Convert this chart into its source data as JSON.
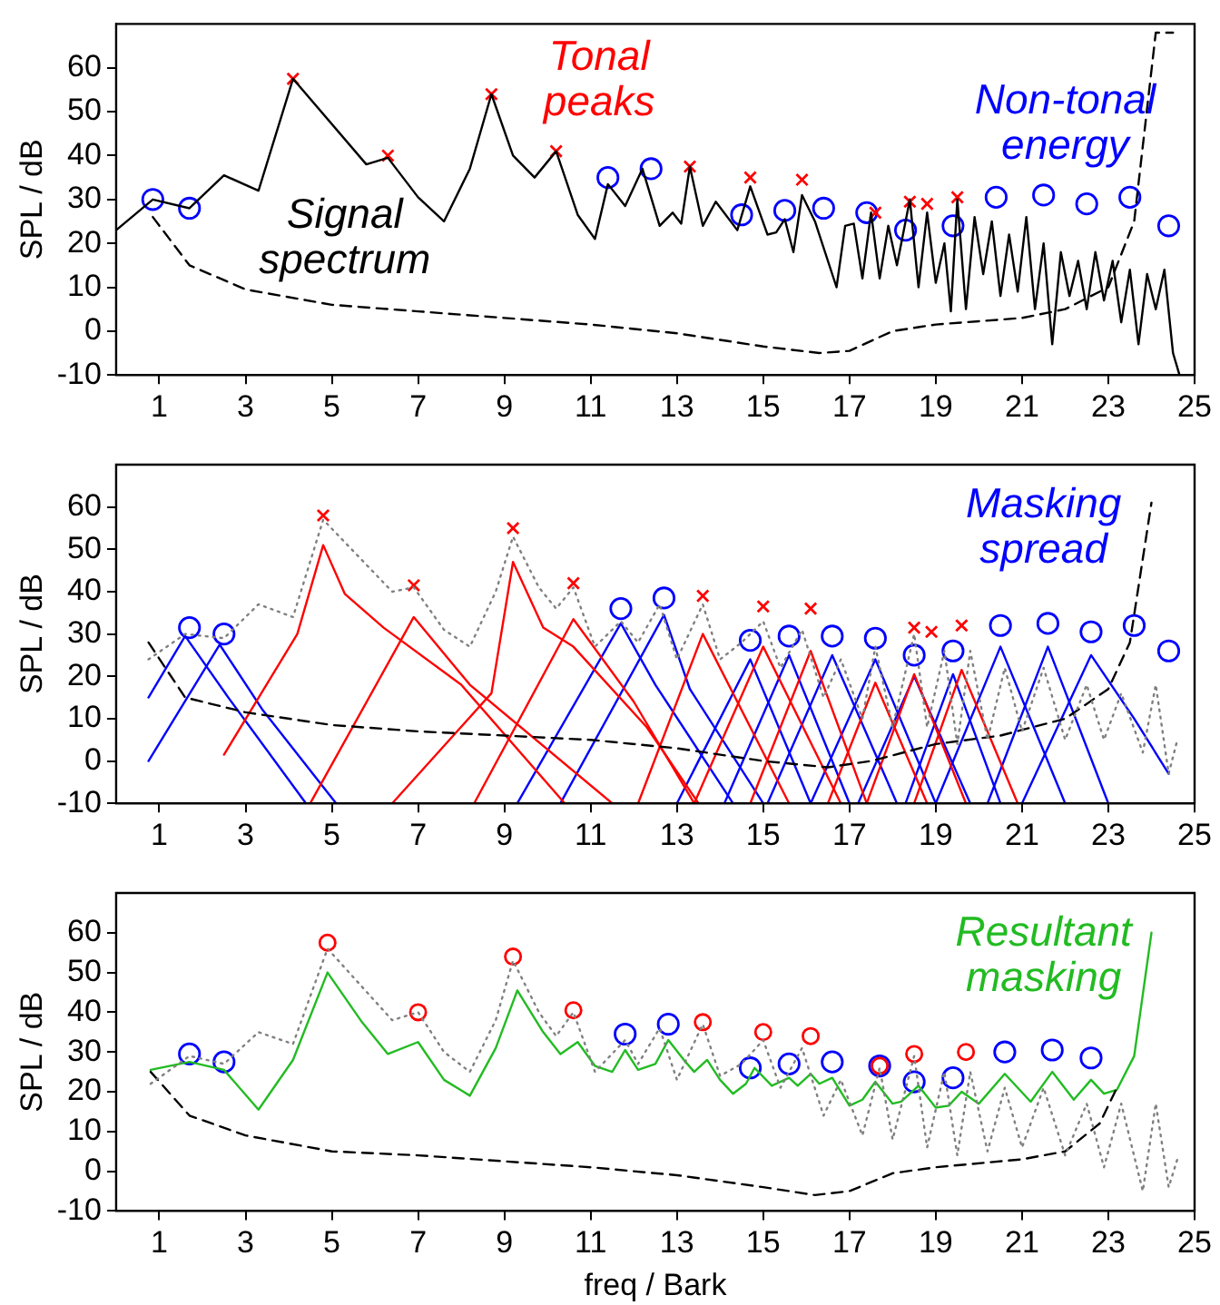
{
  "chart_data": [
    {
      "type": "line",
      "ylabel": "SPL / dB",
      "xlim": [
        0,
        25
      ],
      "ylim": [
        -10,
        70
      ],
      "xticks": [
        1,
        3,
        5,
        7,
        9,
        11,
        13,
        15,
        17,
        19,
        21,
        23,
        25
      ],
      "yticks": [
        -10,
        0,
        10,
        20,
        30,
        40,
        50,
        60
      ],
      "grid": false,
      "series": [
        {
          "type": "line",
          "name": "Signal spectrum",
          "color": "#000000",
          "line_style": "solid",
          "x": [
            0,
            0.85,
            1.7,
            2.5,
            3.3,
            4.1,
            5.8,
            6.3,
            7,
            7.6,
            8.2,
            8.7,
            9.2,
            9.7,
            10.2,
            10.7,
            11.1,
            11.4,
            11.8,
            12.2,
            12.6,
            12.9,
            13.1,
            13.3,
            13.6,
            13.9,
            14.4,
            14.7,
            15.1,
            15.3,
            15.5,
            15.7,
            15.9,
            16.2,
            16.7,
            16.9,
            17.1,
            17.3,
            17.5,
            17.7,
            17.9,
            18.1,
            18.4,
            18.6,
            18.8,
            19,
            19.2,
            19.35,
            19.5,
            19.7,
            19.9,
            20.1,
            20.3,
            20.5,
            20.7,
            20.9,
            21.1,
            21.3,
            21.5,
            21.7,
            21.9,
            22.1,
            22.3,
            22.5,
            22.7,
            22.9,
            23.1,
            23.3,
            23.5,
            23.7,
            23.9,
            24.1,
            24.3,
            24.5,
            24.65
          ],
          "values": [
            23,
            30,
            28,
            35.5,
            32,
            57.5,
            38,
            39.5,
            30.5,
            25,
            37,
            54,
            40,
            35,
            41,
            26.5,
            21,
            33.5,
            28.5,
            37,
            24,
            27,
            24.5,
            37.5,
            24,
            29.5,
            23,
            33,
            22,
            22.5,
            25.5,
            18,
            31,
            25,
            10,
            24,
            24.5,
            12,
            27,
            12,
            24,
            15,
            30,
            10,
            27,
            11,
            20,
            4.5,
            30,
            5,
            26,
            13,
            25,
            8,
            22,
            9,
            26,
            5,
            20,
            -3,
            18,
            8,
            16,
            5,
            18,
            7,
            16,
            2,
            14,
            -3,
            13,
            5,
            14,
            -5,
            -10
          ]
        },
        {
          "type": "line",
          "color": "#000000",
          "line_style": "dashed",
          "x": [
            0.85,
            1.7,
            3,
            5,
            7,
            9,
            11,
            13,
            15,
            16.3,
            17,
            18,
            19,
            21,
            22,
            23,
            23.6,
            24.1,
            24.5
          ],
          "values": [
            26,
            15,
            9.5,
            6,
            4.5,
            3,
            1.5,
            -0.5,
            -3.5,
            -5,
            -4.5,
            0,
            1.5,
            3,
            5,
            10,
            25,
            68,
            68
          ]
        },
        {
          "type": "scatter",
          "name": "Tonal peaks",
          "color": "#ff0000",
          "marker": "cross",
          "x": [
            4.1,
            6.3,
            8.7,
            10.2,
            13.3,
            14.7,
            15.9,
            17.6,
            18.4,
            18.8,
            19.5
          ],
          "values": [
            57.5,
            40,
            54,
            41,
            37.5,
            35,
            34.5,
            27,
            29.5,
            29,
            30.5
          ]
        },
        {
          "type": "scatter",
          "name": "Non-tonal energy",
          "color": "#0000ff",
          "marker": "circle",
          "x": [
            0.85,
            1.7,
            11.4,
            12.4,
            14.5,
            15.5,
            16.4,
            17.4,
            18.3,
            19.4,
            20.4,
            21.5,
            22.5,
            23.5,
            24.4
          ],
          "values": [
            30,
            28,
            35,
            37,
            26.5,
            27.5,
            28,
            27,
            23,
            24,
            30.5,
            31,
            29,
            30.5,
            24
          ]
        }
      ]
    },
    {
      "type": "line",
      "ylabel": "SPL / dB",
      "xlim": [
        0,
        25
      ],
      "ylim": [
        -10,
        70
      ],
      "xticks": [
        1,
        3,
        5,
        7,
        9,
        11,
        13,
        15,
        17,
        19,
        21,
        23,
        25
      ],
      "yticks": [
        -10,
        0,
        10,
        20,
        30,
        40,
        50,
        60
      ],
      "grid": false,
      "series": [
        {
          "type": "line",
          "color": "#808080",
          "line_style": "dotted",
          "x": [
            0.75,
            1.6,
            2.5,
            3.3,
            4.1,
            4.8,
            6.4,
            6.9,
            7.6,
            8.2,
            8.8,
            9.2,
            9.8,
            10.2,
            10.6,
            11.1,
            11.7,
            12.1,
            12.6,
            13,
            13.6,
            14,
            14.5,
            15,
            15.4,
            15.9,
            16.4,
            16.8,
            17.3,
            17.6,
            18,
            18.5,
            18.8,
            19.2,
            19.5,
            19.8,
            20.2,
            20.6,
            21,
            21.5,
            22,
            22.5,
            22.9,
            23.3,
            23.8,
            24.1,
            24.4,
            24.6
          ],
          "values": [
            24,
            30,
            29,
            37,
            34,
            57,
            40,
            41,
            31,
            27,
            40,
            53,
            41,
            36,
            41,
            27,
            33,
            28,
            37,
            24,
            37,
            24,
            28,
            33,
            22,
            31,
            15,
            24,
            10,
            27,
            8,
            30,
            8,
            26,
            4,
            26,
            5,
            22,
            7,
            22,
            5,
            18,
            5,
            16,
            2,
            18,
            -3,
            5
          ]
        },
        {
          "type": "line",
          "color": "#000000",
          "line_style": "dashed",
          "x": [
            0.75,
            1.6,
            3,
            5,
            7,
            9,
            11,
            13,
            15,
            16.5,
            17.5,
            19,
            20.5,
            22,
            23,
            23.5,
            24
          ],
          "values": [
            28,
            15,
            11.5,
            8.5,
            7,
            6,
            5,
            3,
            0,
            -1.5,
            0,
            4,
            6,
            10,
            17,
            28,
            61
          ]
        },
        {
          "type": "line",
          "color": "#ff0000",
          "line_style": "solid",
          "x": [
            2.5,
            4.2,
            4.8,
            5.3,
            6.2,
            8,
            10.4
          ],
          "values": [
            1.5,
            30,
            51,
            39.5,
            31.5,
            18,
            -10
          ]
        },
        {
          "type": "line",
          "color": "#ff0000",
          "line_style": "solid",
          "x": [
            4.5,
            6.9,
            8.2,
            11.5
          ],
          "values": [
            -10,
            34,
            18,
            -10
          ]
        },
        {
          "type": "line",
          "color": "#ff0000",
          "line_style": "solid",
          "x": [
            6.4,
            8.7,
            9.2,
            9.9,
            10.6,
            12.3,
            13.5
          ],
          "values": [
            -10,
            16,
            47,
            31.5,
            27,
            8,
            -10
          ]
        },
        {
          "type": "line",
          "color": "#ff0000",
          "line_style": "solid",
          "x": [
            8.3,
            10.6,
            12,
            13.4
          ],
          "values": [
            -10,
            33.5,
            14,
            -10
          ]
        },
        {
          "type": "line",
          "color": "#ff0000",
          "line_style": "solid",
          "x": [
            12.1,
            13.6,
            15.6
          ],
          "values": [
            -10,
            30,
            -10
          ]
        },
        {
          "type": "line",
          "color": "#ff0000",
          "line_style": "solid",
          "x": [
            13.4,
            15,
            16.8
          ],
          "values": [
            -10,
            27,
            -10
          ]
        },
        {
          "type": "line",
          "color": "#ff0000",
          "line_style": "solid",
          "x": [
            14.7,
            16.1,
            17.4
          ],
          "values": [
            -10,
            26,
            -10
          ]
        },
        {
          "type": "line",
          "color": "#ff0000",
          "line_style": "solid",
          "x": [
            16.5,
            17.6,
            18.8
          ],
          "values": [
            -10,
            18.5,
            -10
          ]
        },
        {
          "type": "line",
          "color": "#ff0000",
          "line_style": "solid",
          "x": [
            17.4,
            18.5,
            19.7
          ],
          "values": [
            -10,
            20.5,
            -10
          ]
        },
        {
          "type": "line",
          "color": "#ff0000",
          "line_style": "solid",
          "x": [
            18.5,
            19.6,
            20.9
          ],
          "values": [
            -10,
            21.5,
            -10
          ]
        },
        {
          "type": "line",
          "color": "#0000ff",
          "line_style": "solid",
          "x": [
            0.75,
            1.6,
            2.6,
            4.4
          ],
          "values": [
            15,
            29.5,
            15,
            -10
          ]
        },
        {
          "type": "line",
          "color": "#0000ff",
          "line_style": "solid",
          "x": [
            0.75,
            2.4,
            3.4,
            5.1
          ],
          "values": [
            0,
            27.5,
            12,
            -10
          ]
        },
        {
          "type": "line",
          "color": "#0000ff",
          "line_style": "solid",
          "x": [
            9.3,
            11.7,
            12.5,
            14.3
          ],
          "values": [
            -10,
            32.5,
            18,
            -10
          ]
        },
        {
          "type": "line",
          "color": "#0000ff",
          "line_style": "solid",
          "x": [
            10.3,
            12.7,
            13.3,
            15
          ],
          "values": [
            -10,
            34.5,
            17,
            -10
          ]
        },
        {
          "type": "line",
          "color": "#0000ff",
          "line_style": "solid",
          "x": [
            13,
            14.7,
            16.1
          ],
          "values": [
            -10,
            24,
            -10
          ]
        },
        {
          "type": "line",
          "color": "#0000ff",
          "line_style": "solid",
          "x": [
            14.1,
            15.6,
            17
          ],
          "values": [
            -10,
            25,
            -10
          ]
        },
        {
          "type": "line",
          "color": "#0000ff",
          "line_style": "solid",
          "x": [
            15.1,
            16.6,
            18.1
          ],
          "values": [
            -10,
            25,
            -10
          ]
        },
        {
          "type": "line",
          "color": "#0000ff",
          "line_style": "solid",
          "x": [
            16.1,
            17.6,
            19
          ],
          "values": [
            -10,
            24,
            -10
          ]
        },
        {
          "type": "line",
          "color": "#0000ff",
          "line_style": "solid",
          "x": [
            17.2,
            18.5,
            19.8
          ],
          "values": [
            -10,
            20,
            -10
          ]
        },
        {
          "type": "line",
          "color": "#0000ff",
          "line_style": "solid",
          "x": [
            18.3,
            19.4,
            20.5
          ],
          "values": [
            -10,
            20.5,
            -10
          ]
        },
        {
          "type": "line",
          "color": "#0000ff",
          "line_style": "solid",
          "x": [
            19,
            20.5,
            22
          ],
          "values": [
            -10,
            27,
            -10
          ]
        },
        {
          "type": "line",
          "color": "#0000ff",
          "line_style": "solid",
          "x": [
            20.2,
            21.6,
            23
          ],
          "values": [
            -10,
            27,
            -10
          ]
        },
        {
          "type": "line",
          "name": "Masking spread",
          "color": "#0000ff",
          "line_style": "solid",
          "x": [
            21,
            22.6,
            23.6,
            24.4
          ],
          "values": [
            -10,
            25,
            10,
            -3
          ]
        },
        {
          "type": "scatter",
          "color": "#ff0000",
          "marker": "cross",
          "x": [
            4.8,
            6.9,
            9.2,
            10.6,
            13.6,
            15,
            16.1,
            18.5,
            18.9,
            19.6
          ],
          "values": [
            58,
            41.5,
            55,
            42,
            39,
            36.5,
            36,
            31.5,
            30.5,
            32
          ]
        },
        {
          "type": "scatter",
          "color": "#0000ff",
          "marker": "circle",
          "x": [
            1.7,
            2.5,
            11.7,
            12.7,
            14.7,
            15.6,
            16.6,
            17.6,
            18.5,
            19.4,
            20.5,
            21.6,
            22.6,
            23.6,
            24.4
          ],
          "values": [
            31.5,
            30,
            36,
            38.5,
            28.5,
            29.5,
            29.5,
            29,
            25,
            26,
            32,
            32.5,
            30.5,
            32,
            26
          ]
        }
      ]
    },
    {
      "type": "line",
      "xlabel": "freq / Bark",
      "ylabel": "SPL / dB",
      "xlim": [
        0,
        25
      ],
      "ylim": [
        -10,
        70
      ],
      "xticks": [
        1,
        3,
        5,
        7,
        9,
        11,
        13,
        15,
        17,
        19,
        21,
        23,
        25
      ],
      "yticks": [
        -10,
        0,
        10,
        20,
        30,
        40,
        50,
        60
      ],
      "grid": false,
      "series": [
        {
          "type": "line",
          "color": "#808080",
          "line_style": "dotted",
          "x": [
            0.8,
            1.7,
            2.5,
            3.3,
            4.1,
            4.9,
            6.4,
            7,
            7.6,
            8.2,
            8.8,
            9.2,
            9.8,
            10.2,
            10.6,
            11.1,
            11.8,
            12.1,
            12.6,
            13,
            13.6,
            14,
            14.5,
            15,
            15.4,
            15.9,
            16.4,
            16.8,
            17.3,
            17.7,
            18,
            18.5,
            18.8,
            19.2,
            19.5,
            19.8,
            20.2,
            20.6,
            21,
            21.5,
            22,
            22.5,
            22.9,
            23.3,
            23.8,
            24.1,
            24.4,
            24.6
          ],
          "values": [
            22,
            29,
            27,
            35,
            32,
            56,
            38,
            40,
            30,
            25,
            38,
            53,
            40,
            34,
            40,
            25,
            33,
            27,
            36,
            23,
            37,
            24,
            27,
            33,
            21,
            31,
            14,
            23,
            9,
            26,
            8,
            29,
            6,
            25,
            4,
            25,
            5,
            21,
            6,
            21,
            4,
            17,
            1,
            17,
            -5,
            17,
            -4,
            3
          ]
        },
        {
          "type": "line",
          "color": "#000000",
          "line_style": "dashed",
          "x": [
            0.8,
            1.7,
            3,
            5,
            7,
            9,
            11,
            13,
            15,
            16.2,
            17,
            18,
            19,
            21,
            22,
            22.8,
            23.2
          ],
          "values": [
            25,
            14,
            9,
            5,
            4,
            2.5,
            1,
            -1,
            -4,
            -6,
            -5,
            -0.5,
            1,
            3,
            5,
            12,
            21
          ]
        },
        {
          "type": "line",
          "name": "Resultant masking",
          "color": "#22bb22",
          "line_style": "solid",
          "x": [
            0.8,
            1.7,
            2.5,
            3.3,
            4.1,
            4.9,
            5.7,
            6.3,
            7,
            7.6,
            8.2,
            8.8,
            9.3,
            9.9,
            10.3,
            10.7,
            11.1,
            11.5,
            11.8,
            12.1,
            12.5,
            12.8,
            13.2,
            13.4,
            13.7,
            14,
            14.3,
            14.6,
            14.8,
            15.2,
            15.6,
            15.8,
            16.1,
            16.3,
            16.6,
            17,
            17.3,
            17.6,
            18,
            18.2,
            18.6,
            19,
            19.3,
            19.6,
            20,
            20.6,
            21.2,
            21.7,
            22.2,
            22.6,
            22.9,
            23.2,
            23.6,
            24
          ],
          "values": [
            25.5,
            27.5,
            25.5,
            15.5,
            28,
            50,
            37.5,
            29.5,
            32.5,
            23,
            19,
            31,
            45.5,
            35,
            29.5,
            32.5,
            26.5,
            25,
            30.5,
            25.5,
            27,
            33,
            27.5,
            25,
            28,
            23,
            19.5,
            22,
            26,
            21.5,
            23.5,
            21.5,
            24.5,
            22,
            23.5,
            16.5,
            18,
            22.5,
            17,
            17.5,
            21.5,
            16,
            16.5,
            20,
            17,
            24.5,
            17.5,
            25,
            18,
            23,
            19.5,
            20.5,
            29,
            60
          ]
        },
        {
          "type": "scatter",
          "color": "#ff0000",
          "marker": "circle",
          "x": [
            4.9,
            7,
            9.2,
            10.6,
            13.6,
            15,
            16.1,
            17.7,
            18.5,
            19.7
          ],
          "values": [
            57.5,
            40,
            54,
            40.5,
            37.5,
            35,
            34,
            26.5,
            29.5,
            30
          ]
        },
        {
          "type": "scatter",
          "color": "#0000ff",
          "marker": "circle",
          "x": [
            1.7,
            2.5,
            11.8,
            12.8,
            14.7,
            15.6,
            16.6,
            17.7,
            18.5,
            19.4,
            20.6,
            21.7,
            22.6
          ],
          "values": [
            29.5,
            27.5,
            34.5,
            37,
            26,
            27,
            27.5,
            26.5,
            22.5,
            23.5,
            30,
            30.5,
            28.5
          ]
        }
      ]
    }
  ]
}
